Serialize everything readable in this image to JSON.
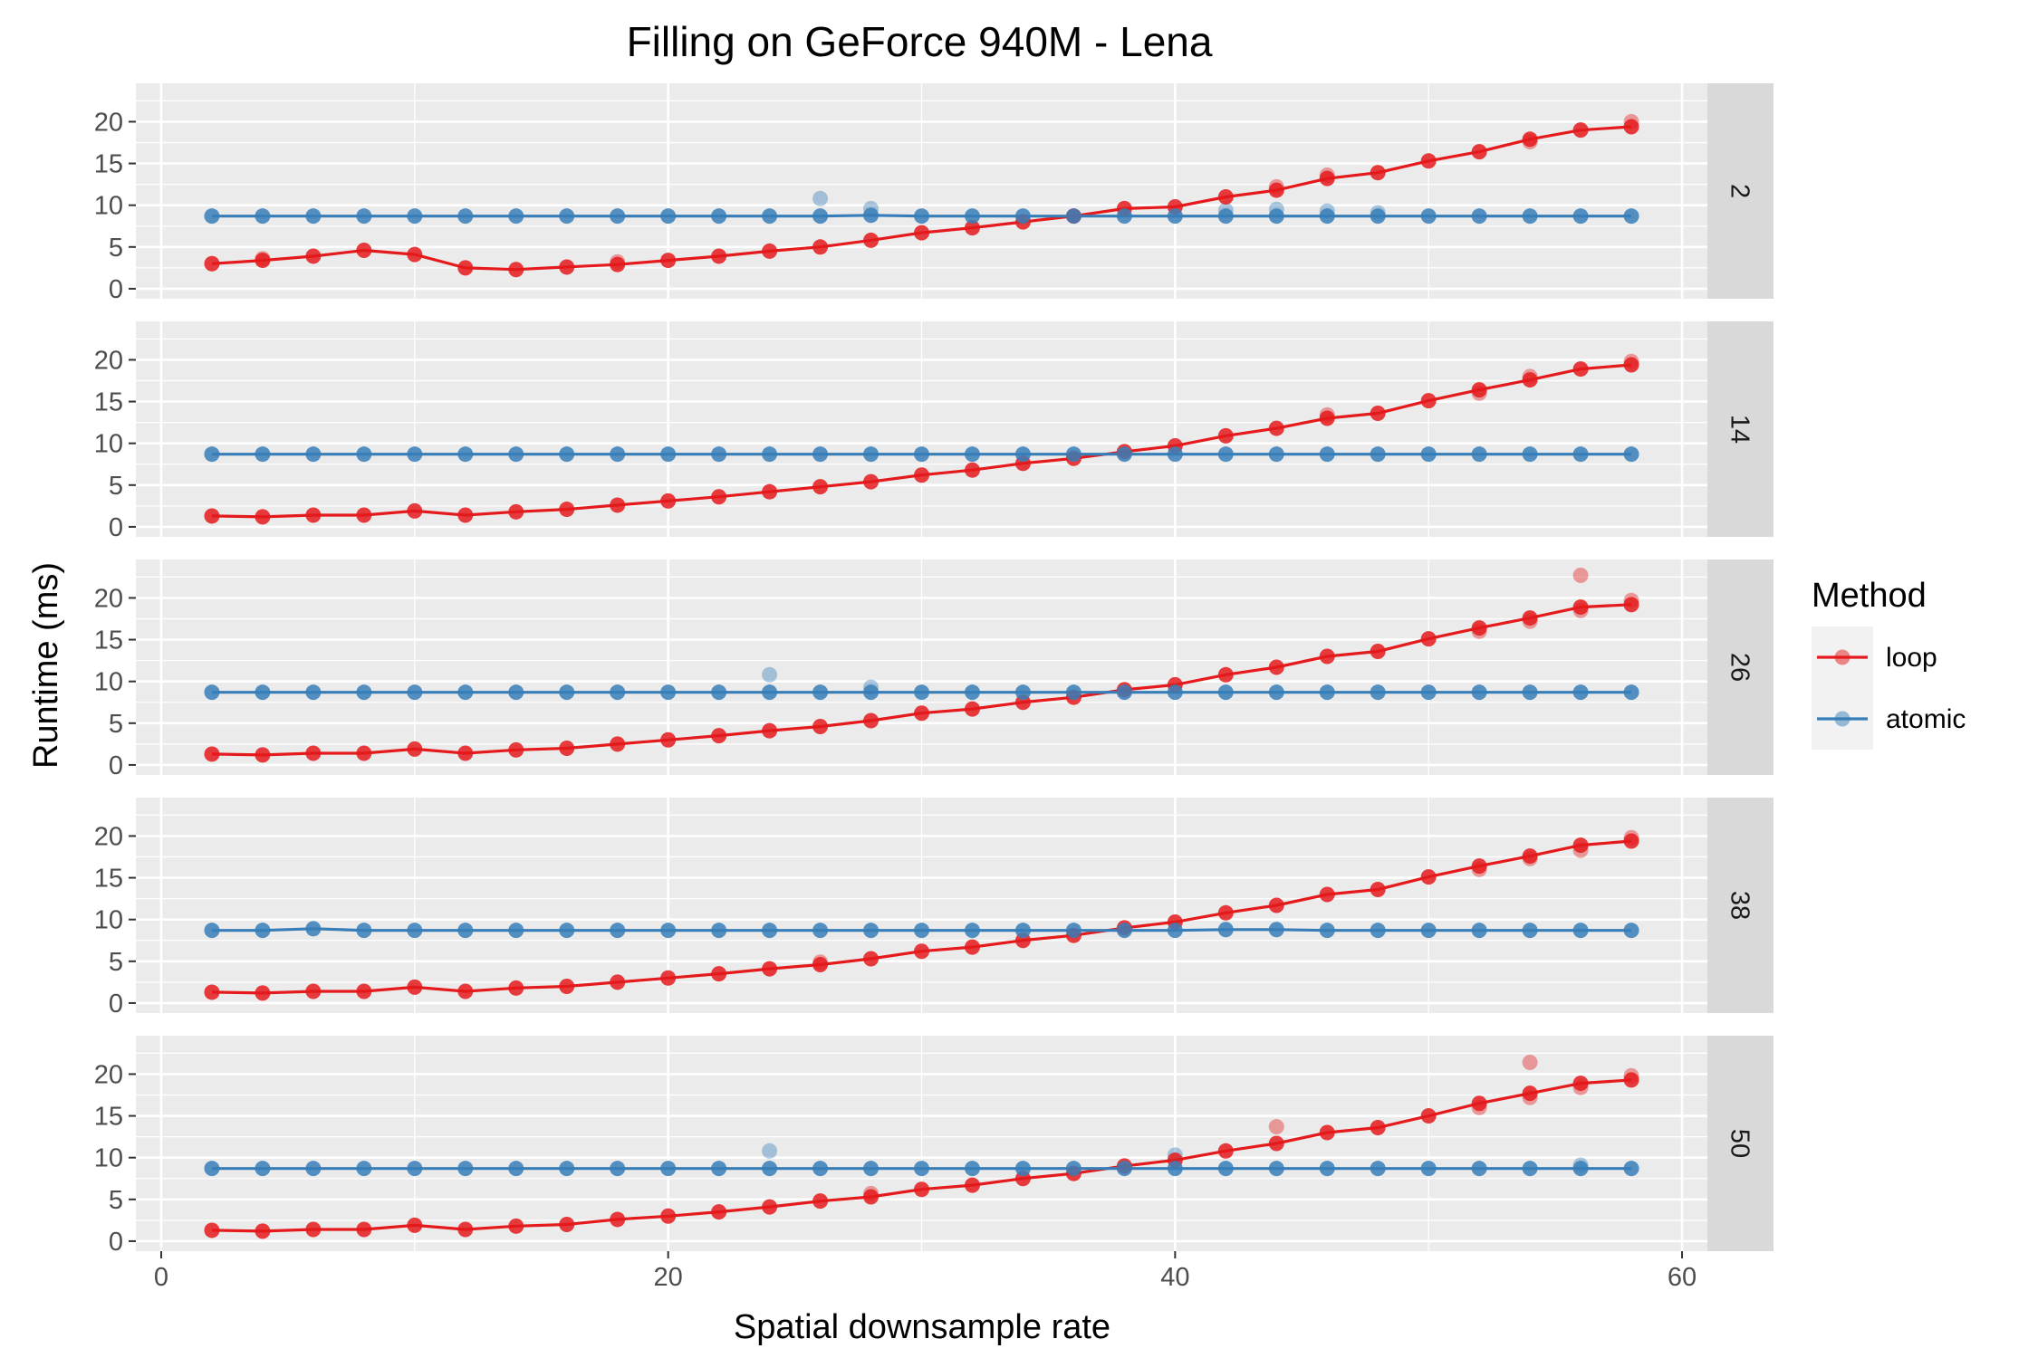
{
  "chart_data": {
    "type": "line",
    "title": "Filling on GeForce 940M - Lena",
    "xlabel": "Spatial downsample rate",
    "ylabel": "Runtime (ms)",
    "xlim": [
      -1,
      61
    ],
    "ylim": [
      -1.2,
      24.6
    ],
    "x_ticks": [
      0,
      20,
      40,
      60
    ],
    "y_ticks": [
      0,
      5,
      10,
      15,
      20
    ],
    "grid": true,
    "legend": {
      "title": "Method",
      "position": "right",
      "entries": [
        {
          "name": "loop",
          "color": "#e41a1c"
        },
        {
          "name": "atomic",
          "color": "#377eb8"
        }
      ]
    },
    "facets": [
      {
        "label": "2",
        "x": [
          2,
          4,
          6,
          8,
          10,
          12,
          14,
          16,
          18,
          20,
          22,
          24,
          26,
          28,
          30,
          32,
          34,
          36,
          38,
          40,
          42,
          44,
          46,
          48,
          50,
          52,
          54,
          56,
          58
        ],
        "series": [
          {
            "name": "loop",
            "values": [
              3.0,
              3.4,
              3.9,
              4.6,
              4.1,
              2.5,
              2.3,
              2.6,
              2.9,
              3.4,
              3.9,
              4.5,
              5.0,
              5.8,
              6.7,
              7.3,
              8.0,
              8.7,
              9.6,
              9.8,
              11.0,
              11.8,
              13.2,
              13.9,
              15.3,
              16.4,
              17.9,
              19.0,
              19.4
            ]
          },
          {
            "name": "atomic",
            "values": [
              8.7,
              8.7,
              8.7,
              8.7,
              8.7,
              8.7,
              8.7,
              8.7,
              8.7,
              8.7,
              8.7,
              8.7,
              8.7,
              8.8,
              8.7,
              8.7,
              8.7,
              8.7,
              8.7,
              8.7,
              8.7,
              8.7,
              8.7,
              8.7,
              8.7,
              8.7,
              8.7,
              8.7,
              8.7
            ]
          }
        ],
        "scatter": [
          {
            "series": "loop",
            "x": 4,
            "y": 3.6
          },
          {
            "series": "loop",
            "x": 18,
            "y": 3.2
          },
          {
            "series": "loop",
            "x": 44,
            "y": 12.2
          },
          {
            "series": "loop",
            "x": 46,
            "y": 13.6
          },
          {
            "series": "loop",
            "x": 54,
            "y": 17.6
          },
          {
            "series": "loop",
            "x": 58,
            "y": 20.0
          },
          {
            "series": "atomic",
            "x": 26,
            "y": 10.8
          },
          {
            "series": "atomic",
            "x": 28,
            "y": 9.6
          },
          {
            "series": "atomic",
            "x": 42,
            "y": 9.4
          },
          {
            "series": "atomic",
            "x": 44,
            "y": 9.5
          },
          {
            "series": "atomic",
            "x": 46,
            "y": 9.3
          },
          {
            "series": "atomic",
            "x": 48,
            "y": 9.1
          }
        ]
      },
      {
        "label": "14",
        "x": [
          2,
          4,
          6,
          8,
          10,
          12,
          14,
          16,
          18,
          20,
          22,
          24,
          26,
          28,
          30,
          32,
          34,
          36,
          38,
          40,
          42,
          44,
          46,
          48,
          50,
          52,
          54,
          56,
          58
        ],
        "series": [
          {
            "name": "loop",
            "values": [
              1.3,
              1.2,
              1.4,
              1.4,
              1.9,
              1.4,
              1.8,
              2.1,
              2.6,
              3.1,
              3.6,
              4.2,
              4.8,
              5.4,
              6.2,
              6.8,
              7.6,
              8.2,
              9.0,
              9.7,
              10.9,
              11.8,
              13.0,
              13.6,
              15.1,
              16.4,
              17.6,
              18.9,
              19.4
            ]
          },
          {
            "name": "atomic",
            "values": [
              8.7,
              8.7,
              8.7,
              8.7,
              8.7,
              8.7,
              8.7,
              8.7,
              8.7,
              8.7,
              8.7,
              8.7,
              8.7,
              8.7,
              8.7,
              8.7,
              8.7,
              8.7,
              8.7,
              8.7,
              8.7,
              8.7,
              8.7,
              8.7,
              8.7,
              8.7,
              8.7,
              8.7,
              8.7
            ]
          }
        ],
        "scatter": [
          {
            "series": "loop",
            "x": 46,
            "y": 13.4
          },
          {
            "series": "loop",
            "x": 52,
            "y": 16.0
          },
          {
            "series": "loop",
            "x": 54,
            "y": 18.0
          },
          {
            "series": "loop",
            "x": 58,
            "y": 19.8
          }
        ]
      },
      {
        "label": "26",
        "x": [
          2,
          4,
          6,
          8,
          10,
          12,
          14,
          16,
          18,
          20,
          22,
          24,
          26,
          28,
          30,
          32,
          34,
          36,
          38,
          40,
          42,
          44,
          46,
          48,
          50,
          52,
          54,
          56,
          58
        ],
        "series": [
          {
            "name": "loop",
            "values": [
              1.3,
              1.2,
              1.4,
              1.4,
              1.9,
              1.4,
              1.8,
              2.0,
              2.5,
              3.0,
              3.5,
              4.1,
              4.6,
              5.3,
              6.2,
              6.7,
              7.5,
              8.1,
              9.0,
              9.6,
              10.8,
              11.7,
              13.0,
              13.6,
              15.1,
              16.4,
              17.6,
              18.9,
              19.2
            ]
          },
          {
            "name": "atomic",
            "values": [
              8.7,
              8.7,
              8.7,
              8.7,
              8.7,
              8.7,
              8.7,
              8.7,
              8.7,
              8.7,
              8.7,
              8.7,
              8.7,
              8.7,
              8.7,
              8.7,
              8.7,
              8.7,
              8.7,
              8.7,
              8.7,
              8.7,
              8.7,
              8.7,
              8.7,
              8.7,
              8.7,
              8.7,
              8.7
            ]
          }
        ],
        "scatter": [
          {
            "series": "loop",
            "x": 52,
            "y": 16.0
          },
          {
            "series": "loop",
            "x": 54,
            "y": 17.2
          },
          {
            "series": "loop",
            "x": 56,
            "y": 22.7
          },
          {
            "series": "loop",
            "x": 56,
            "y": 18.5
          },
          {
            "series": "loop",
            "x": 58,
            "y": 19.7
          },
          {
            "series": "atomic",
            "x": 24,
            "y": 10.8
          },
          {
            "series": "atomic",
            "x": 28,
            "y": 9.3
          }
        ]
      },
      {
        "label": "38",
        "x": [
          2,
          4,
          6,
          8,
          10,
          12,
          14,
          16,
          18,
          20,
          22,
          24,
          26,
          28,
          30,
          32,
          34,
          36,
          38,
          40,
          42,
          44,
          46,
          48,
          50,
          52,
          54,
          56,
          58
        ],
        "series": [
          {
            "name": "loop",
            "values": [
              1.3,
              1.2,
              1.4,
              1.4,
              1.9,
              1.4,
              1.8,
              2.0,
              2.5,
              3.0,
              3.5,
              4.1,
              4.6,
              5.3,
              6.2,
              6.7,
              7.5,
              8.1,
              9.0,
              9.7,
              10.8,
              11.7,
              13.0,
              13.6,
              15.1,
              16.4,
              17.6,
              18.9,
              19.4
            ]
          },
          {
            "name": "atomic",
            "values": [
              8.7,
              8.7,
              8.9,
              8.7,
              8.7,
              8.7,
              8.7,
              8.7,
              8.7,
              8.7,
              8.7,
              8.7,
              8.7,
              8.7,
              8.7,
              8.7,
              8.7,
              8.7,
              8.7,
              8.7,
              8.8,
              8.8,
              8.7,
              8.7,
              8.7,
              8.7,
              8.7,
              8.7,
              8.7
            ]
          }
        ],
        "scatter": [
          {
            "series": "loop",
            "x": 52,
            "y": 16.0
          },
          {
            "series": "loop",
            "x": 54,
            "y": 17.3
          },
          {
            "series": "loop",
            "x": 56,
            "y": 18.3
          },
          {
            "series": "loop",
            "x": 58,
            "y": 19.8
          },
          {
            "series": "loop",
            "x": 26,
            "y": 4.9
          }
        ]
      },
      {
        "label": "50",
        "x": [
          2,
          4,
          6,
          8,
          10,
          12,
          14,
          16,
          18,
          20,
          22,
          24,
          26,
          28,
          30,
          32,
          34,
          36,
          38,
          40,
          42,
          44,
          46,
          48,
          50,
          52,
          54,
          56,
          58
        ],
        "series": [
          {
            "name": "loop",
            "values": [
              1.3,
              1.2,
              1.4,
              1.4,
              1.9,
              1.4,
              1.8,
              2.0,
              2.6,
              3.0,
              3.5,
              4.1,
              4.8,
              5.3,
              6.2,
              6.7,
              7.5,
              8.1,
              9.0,
              9.7,
              10.8,
              11.7,
              13.0,
              13.6,
              15.0,
              16.5,
              17.7,
              18.9,
              19.3
            ]
          },
          {
            "name": "atomic",
            "values": [
              8.7,
              8.7,
              8.7,
              8.7,
              8.7,
              8.7,
              8.7,
              8.7,
              8.7,
              8.7,
              8.7,
              8.7,
              8.7,
              8.7,
              8.7,
              8.7,
              8.7,
              8.7,
              8.7,
              8.7,
              8.7,
              8.7,
              8.7,
              8.7,
              8.7,
              8.7,
              8.7,
              8.7,
              8.7
            ]
          }
        ],
        "scatter": [
          {
            "series": "loop",
            "x": 28,
            "y": 5.7
          },
          {
            "series": "loop",
            "x": 44,
            "y": 13.7
          },
          {
            "series": "loop",
            "x": 52,
            "y": 16.0
          },
          {
            "series": "loop",
            "x": 54,
            "y": 21.4
          },
          {
            "series": "loop",
            "x": 54,
            "y": 17.2
          },
          {
            "series": "loop",
            "x": 56,
            "y": 18.4
          },
          {
            "series": "loop",
            "x": 58,
            "y": 19.8
          },
          {
            "series": "atomic",
            "x": 24,
            "y": 10.8
          },
          {
            "series": "atomic",
            "x": 40,
            "y": 10.3
          },
          {
            "series": "atomic",
            "x": 56,
            "y": 9.1
          }
        ]
      }
    ]
  }
}
